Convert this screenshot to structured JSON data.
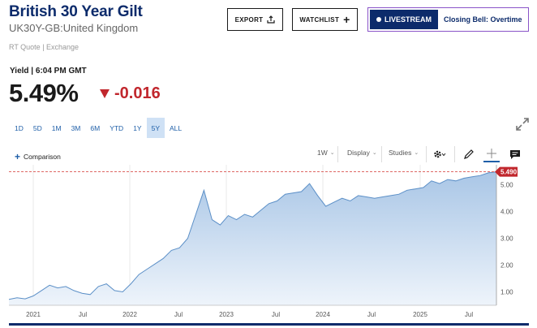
{
  "header": {
    "title": "British 30 Year Gilt",
    "subtitle": "UK30Y-GB:United Kingdom",
    "quote_source": "RT Quote | Exchange"
  },
  "buttons": {
    "export": "EXPORT",
    "watchlist": "WATCHLIST",
    "livestream": "LIVESTREAM",
    "program": "Closing Bell: Overtime"
  },
  "quote": {
    "yield_label": "Yield | 6:04 PM GMT",
    "value": "5.49%",
    "change": "-0.016",
    "change_color": "#c1272d"
  },
  "ranges": {
    "items": [
      "1D",
      "5D",
      "1M",
      "3M",
      "6M",
      "YTD",
      "1Y",
      "5Y",
      "ALL"
    ],
    "active": "5Y"
  },
  "toolbar": {
    "comparison": "Comparison",
    "interval": "1W",
    "display": "Display",
    "studies": "Studies",
    "icons": [
      "gear-icon",
      "pencil-icon",
      "crosshair-icon",
      "comment-icon"
    ]
  },
  "chart_data": {
    "type": "area",
    "x_labels": [
      "2021",
      "Jul",
      "2022",
      "Jul",
      "2023",
      "Jul",
      "2024",
      "Jul",
      "2025",
      "Jul"
    ],
    "y_ticks": [
      "1.00",
      "2.00",
      "3.00",
      "4.00",
      "5.00"
    ],
    "ylim": [
      0.5,
      5.75
    ],
    "last_value_label": "5.490",
    "last_value": 5.49,
    "grid": "vertical",
    "line_color": "#5b8fc7",
    "fill_top": "#a9c6e6",
    "fill_bottom": "#eef4fb",
    "series": [
      {
        "x": [
          "2020-10",
          "2020-11",
          "2020-12",
          "2021-01",
          "2021-02",
          "2021-03",
          "2021-04",
          "2021-05",
          "2021-06",
          "2021-07",
          "2021-08",
          "2021-09",
          "2021-10",
          "2021-11",
          "2021-12",
          "2022-01",
          "2022-02",
          "2022-03",
          "2022-04",
          "2022-05",
          "2022-06",
          "2022-07",
          "2022-08",
          "2022-09",
          "2022-09b",
          "2022-10",
          "2022-11",
          "2022-12",
          "2023-01",
          "2023-02",
          "2023-03",
          "2023-04",
          "2023-05",
          "2023-06",
          "2023-07",
          "2023-08",
          "2023-09",
          "2023-10",
          "2023-11",
          "2023-12",
          "2024-01",
          "2024-02",
          "2024-03",
          "2024-04",
          "2024-05",
          "2024-06",
          "2024-07",
          "2024-08",
          "2024-09",
          "2024-10",
          "2024-11",
          "2024-12",
          "2025-01",
          "2025-02",
          "2025-03",
          "2025-04",
          "2025-05",
          "2025-06",
          "2025-07",
          "2025-08",
          "2025-09"
        ],
        "values": [
          0.72,
          0.78,
          0.74,
          0.85,
          1.05,
          1.25,
          1.15,
          1.2,
          1.05,
          0.95,
          0.9,
          1.2,
          1.3,
          1.05,
          1.0,
          1.3,
          1.65,
          1.85,
          2.05,
          2.25,
          2.55,
          2.65,
          3.0,
          3.9,
          4.8,
          3.7,
          3.5,
          3.85,
          3.7,
          3.9,
          3.8,
          4.05,
          4.3,
          4.4,
          4.65,
          4.7,
          4.75,
          5.05,
          4.6,
          4.2,
          4.35,
          4.5,
          4.4,
          4.6,
          4.55,
          4.5,
          4.55,
          4.6,
          4.65,
          4.8,
          4.85,
          4.9,
          5.15,
          5.05,
          5.2,
          5.15,
          5.25,
          5.3,
          5.35,
          5.45,
          5.49
        ]
      }
    ]
  }
}
